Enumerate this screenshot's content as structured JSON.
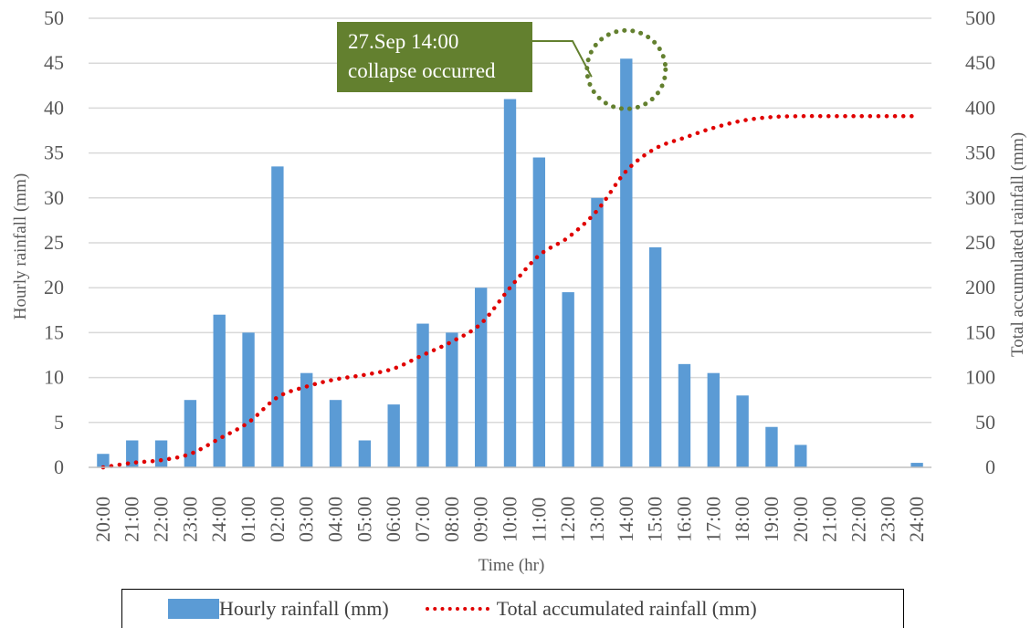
{
  "chart_data": {
    "type": "bar+line",
    "xlabel": "Time (hr)",
    "ylabel_left": "Hourly rainfall (mm)",
    "ylabel_right": "Total accumulated rainfall (mm)",
    "ylim_left": [
      0,
      50
    ],
    "ylim_right": [
      0,
      500
    ],
    "yticks_left": [
      "0",
      "5",
      "10",
      "15",
      "20",
      "25",
      "30",
      "35",
      "40",
      "45",
      "50"
    ],
    "yticks_right": [
      "0",
      "50",
      "100",
      "150",
      "200",
      "250",
      "300",
      "350",
      "400",
      "450",
      "500"
    ],
    "grid": true,
    "legend_position": "bottom",
    "categories": [
      "20:00",
      "21:00",
      "22:00",
      "23:00",
      "24:00",
      "01:00",
      "02:00",
      "03:00",
      "04:00",
      "05:00",
      "06:00",
      "07:00",
      "08:00",
      "09:00",
      "10:00",
      "11:00",
      "12:00",
      "13:00",
      "14:00",
      "15:00",
      "16:00",
      "17:00",
      "18:00",
      "19:00",
      "20:00",
      "21:00",
      "22:00",
      "23:00",
      "24:00"
    ],
    "series": [
      {
        "name": "Hourly rainfall (mm)",
        "kind": "bar",
        "axis": "left",
        "color": "#5B9BD5",
        "values": [
          1.5,
          3,
          3,
          7.5,
          17,
          15,
          33.5,
          10.5,
          7.5,
          3,
          7,
          16,
          15,
          20,
          41,
          34.5,
          19.5,
          30,
          45.5,
          24.5,
          11.5,
          10.5,
          8,
          4.5,
          2.5,
          0,
          0,
          0,
          0.5
        ]
      },
      {
        "name": "Total accumulated rainfall (mm)",
        "kind": "line",
        "axis": "right",
        "color": "#e00000",
        "values": [
          0,
          5,
          8,
          15,
          32,
          50,
          78,
          90,
          98,
          103,
          110,
          125,
          140,
          160,
          200,
          236,
          256,
          286,
          330,
          355,
          367,
          378,
          386,
          390,
          391,
          391,
          391,
          391,
          391
        ]
      }
    ],
    "annotation": {
      "line1": "27.Sep 14:00",
      "line2": "collapse occurred",
      "category_index": 18,
      "value_left": 45.5,
      "box_color": "#63802f",
      "circle_color": "#63802f"
    }
  }
}
